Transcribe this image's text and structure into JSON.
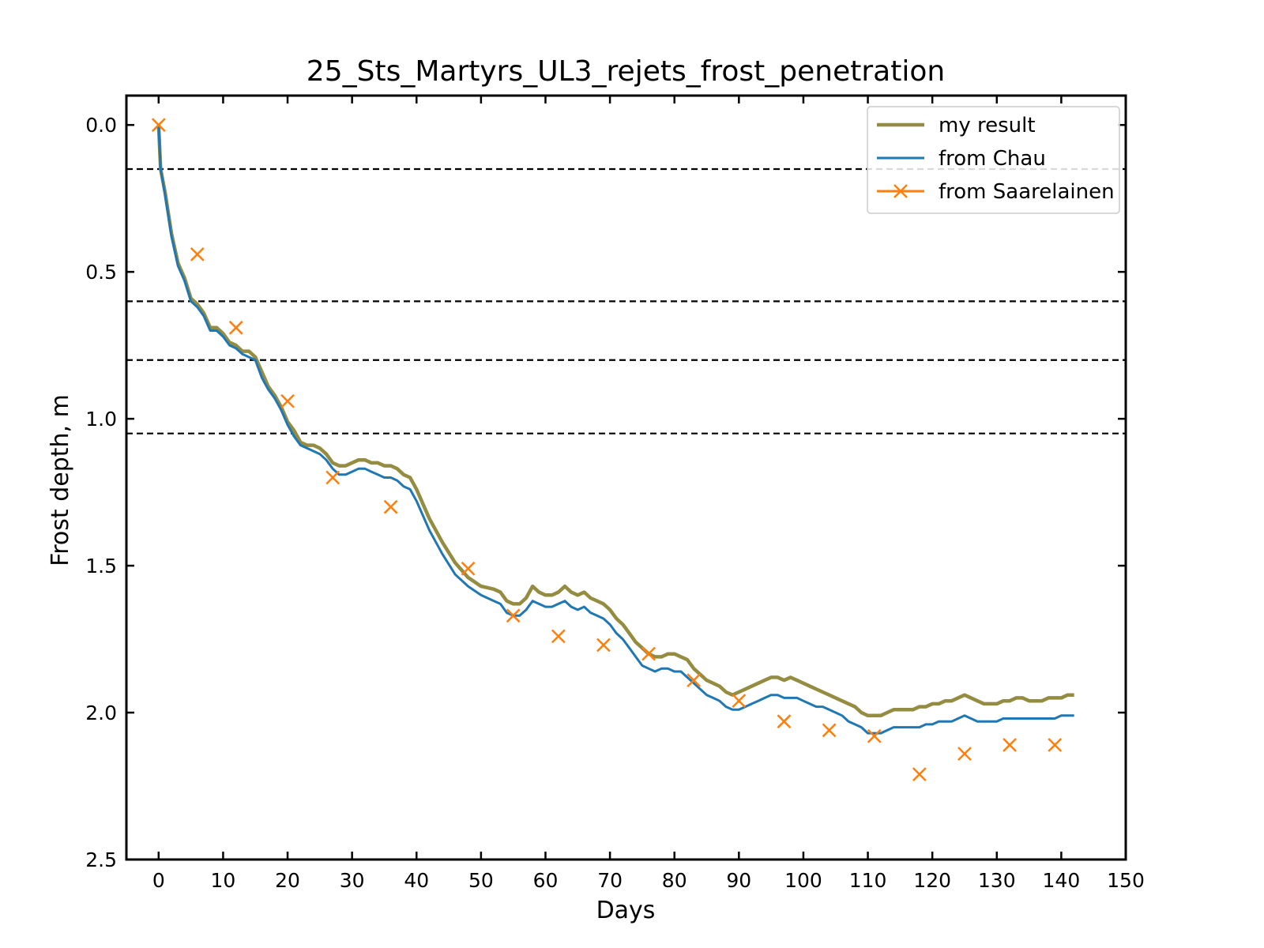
{
  "chart_data": {
    "type": "line",
    "title": "25_Sts_Martyrs_UL3_rejets_frost_penetration",
    "xlabel": "Days",
    "ylabel": "Frost depth, m",
    "xlim": [
      -5,
      150
    ],
    "ylim": [
      2.5,
      -0.1
    ],
    "y_inverted": true,
    "xticks": [
      0,
      10,
      20,
      30,
      40,
      50,
      60,
      70,
      80,
      90,
      100,
      110,
      120,
      130,
      140,
      150
    ],
    "yticks": [
      0.0,
      0.5,
      1.0,
      1.5,
      2.0,
      2.5
    ],
    "xtick_labels": [
      "0",
      "10",
      "20",
      "30",
      "40",
      "50",
      "60",
      "70",
      "80",
      "90",
      "100",
      "110",
      "120",
      "130",
      "140",
      "150"
    ],
    "ytick_labels": [
      "0.0",
      "0.5",
      "1.0",
      "1.5",
      "2.0",
      "2.5"
    ],
    "grid": false,
    "legend_position": "top-right",
    "reference_lines": [
      0.15,
      0.6,
      0.8,
      1.05
    ],
    "reference_line_color": "#000000",
    "series": [
      {
        "name": "my result",
        "color": "#948c41",
        "marker": "none",
        "x": [
          0,
          0.3,
          1,
          2,
          3,
          4,
          5,
          6,
          7,
          8,
          9,
          10,
          11,
          12,
          13,
          14,
          15,
          16,
          17,
          18,
          19,
          20,
          21,
          22,
          23,
          24,
          25,
          26,
          27,
          28,
          29,
          30,
          31,
          32,
          33,
          34,
          35,
          36,
          37,
          38,
          39,
          40,
          42,
          44,
          46,
          48,
          50,
          52,
          53,
          54,
          55,
          56,
          57,
          58,
          59,
          60,
          61,
          62,
          63,
          64,
          65,
          66,
          67,
          68,
          69,
          70,
          71,
          72,
          73,
          74,
          75,
          76,
          77,
          78,
          79,
          80,
          81,
          82,
          83,
          84,
          85,
          86,
          87,
          88,
          89,
          90,
          91,
          92,
          93,
          94,
          95,
          96,
          97,
          98,
          99,
          100,
          101,
          102,
          103,
          104,
          105,
          106,
          107,
          108,
          109,
          110,
          111,
          112,
          113,
          114,
          115,
          116,
          117,
          118,
          119,
          120,
          121,
          122,
          123,
          124,
          125,
          126,
          127,
          128,
          129,
          130,
          131,
          132,
          133,
          134,
          135,
          136,
          137,
          138,
          139,
          140,
          141,
          142
        ],
        "y": [
          0.0,
          0.15,
          0.23,
          0.37,
          0.47,
          0.52,
          0.59,
          0.61,
          0.64,
          0.69,
          0.69,
          0.71,
          0.74,
          0.75,
          0.77,
          0.77,
          0.79,
          0.84,
          0.89,
          0.92,
          0.96,
          1.01,
          1.04,
          1.08,
          1.09,
          1.09,
          1.1,
          1.12,
          1.15,
          1.16,
          1.16,
          1.15,
          1.14,
          1.14,
          1.15,
          1.15,
          1.16,
          1.16,
          1.17,
          1.19,
          1.2,
          1.24,
          1.34,
          1.42,
          1.49,
          1.54,
          1.57,
          1.58,
          1.59,
          1.62,
          1.63,
          1.63,
          1.61,
          1.57,
          1.59,
          1.6,
          1.6,
          1.59,
          1.57,
          1.59,
          1.6,
          1.59,
          1.61,
          1.62,
          1.63,
          1.65,
          1.68,
          1.7,
          1.73,
          1.76,
          1.78,
          1.8,
          1.81,
          1.81,
          1.8,
          1.8,
          1.81,
          1.82,
          1.85,
          1.87,
          1.89,
          1.9,
          1.91,
          1.93,
          1.94,
          1.93,
          1.92,
          1.91,
          1.9,
          1.89,
          1.88,
          1.88,
          1.89,
          1.88,
          1.89,
          1.9,
          1.91,
          1.92,
          1.93,
          1.94,
          1.95,
          1.96,
          1.97,
          1.98,
          2.0,
          2.01,
          2.01,
          2.01,
          2.0,
          1.99,
          1.99,
          1.99,
          1.99,
          1.98,
          1.98,
          1.97,
          1.97,
          1.96,
          1.96,
          1.95,
          1.94,
          1.95,
          1.96,
          1.97,
          1.97,
          1.97,
          1.96,
          1.96,
          1.95,
          1.95,
          1.96,
          1.96,
          1.96,
          1.95,
          1.95,
          1.95,
          1.94,
          1.94
        ]
      },
      {
        "name": "from Chau",
        "color": "#1f77b4",
        "marker": "none",
        "x": [
          0,
          0.3,
          1,
          2,
          3,
          4,
          5,
          6,
          7,
          8,
          9,
          10,
          11,
          12,
          13,
          14,
          15,
          16,
          17,
          18,
          19,
          20,
          21,
          22,
          23,
          24,
          25,
          26,
          27,
          28,
          29,
          30,
          31,
          32,
          33,
          34,
          35,
          36,
          37,
          38,
          39,
          40,
          42,
          44,
          46,
          48,
          50,
          52,
          53,
          54,
          55,
          56,
          57,
          58,
          59,
          60,
          61,
          62,
          63,
          64,
          65,
          66,
          67,
          68,
          69,
          70,
          71,
          72,
          73,
          74,
          75,
          76,
          77,
          78,
          79,
          80,
          81,
          82,
          83,
          84,
          85,
          86,
          87,
          88,
          89,
          90,
          91,
          92,
          93,
          94,
          95,
          96,
          97,
          98,
          99,
          100,
          101,
          102,
          103,
          104,
          105,
          106,
          107,
          108,
          109,
          110,
          111,
          112,
          113,
          114,
          115,
          116,
          117,
          118,
          119,
          120,
          121,
          122,
          123,
          124,
          125,
          126,
          127,
          128,
          129,
          130,
          131,
          132,
          133,
          134,
          135,
          136,
          137,
          138,
          139,
          140,
          141,
          142
        ],
        "y": [
          0.0,
          0.15,
          0.24,
          0.38,
          0.48,
          0.53,
          0.6,
          0.62,
          0.65,
          0.7,
          0.7,
          0.72,
          0.75,
          0.76,
          0.78,
          0.79,
          0.8,
          0.86,
          0.9,
          0.93,
          0.97,
          1.02,
          1.06,
          1.09,
          1.1,
          1.11,
          1.12,
          1.14,
          1.17,
          1.19,
          1.19,
          1.18,
          1.17,
          1.17,
          1.18,
          1.19,
          1.2,
          1.2,
          1.21,
          1.23,
          1.24,
          1.28,
          1.38,
          1.46,
          1.53,
          1.57,
          1.6,
          1.62,
          1.63,
          1.66,
          1.67,
          1.67,
          1.65,
          1.62,
          1.63,
          1.64,
          1.64,
          1.63,
          1.62,
          1.64,
          1.65,
          1.64,
          1.66,
          1.67,
          1.68,
          1.7,
          1.73,
          1.75,
          1.78,
          1.81,
          1.84,
          1.85,
          1.86,
          1.85,
          1.85,
          1.86,
          1.86,
          1.88,
          1.9,
          1.92,
          1.94,
          1.95,
          1.96,
          1.98,
          1.99,
          1.99,
          1.98,
          1.97,
          1.96,
          1.95,
          1.94,
          1.94,
          1.95,
          1.95,
          1.95,
          1.96,
          1.97,
          1.98,
          1.98,
          1.99,
          2.0,
          2.01,
          2.03,
          2.04,
          2.05,
          2.07,
          2.07,
          2.07,
          2.06,
          2.05,
          2.05,
          2.05,
          2.05,
          2.05,
          2.04,
          2.04,
          2.03,
          2.03,
          2.03,
          2.02,
          2.01,
          2.02,
          2.03,
          2.03,
          2.03,
          2.03,
          2.02,
          2.02,
          2.02,
          2.02,
          2.02,
          2.02,
          2.02,
          2.02,
          2.02,
          2.01,
          2.01,
          2.01
        ]
      },
      {
        "name": "from Saarelainen",
        "color": "#ff7f0e",
        "marker": "x",
        "line": "none",
        "x": [
          0,
          6,
          12,
          20,
          27,
          36,
          48,
          55,
          62,
          69,
          76,
          83,
          90,
          97,
          104,
          111,
          118,
          125,
          132,
          139
        ],
        "y": [
          0.0,
          0.44,
          0.69,
          0.94,
          1.2,
          1.3,
          1.51,
          1.67,
          1.74,
          1.77,
          1.8,
          1.89,
          1.96,
          2.03,
          2.06,
          2.08,
          2.21,
          2.14,
          2.11,
          2.11
        ]
      }
    ]
  }
}
